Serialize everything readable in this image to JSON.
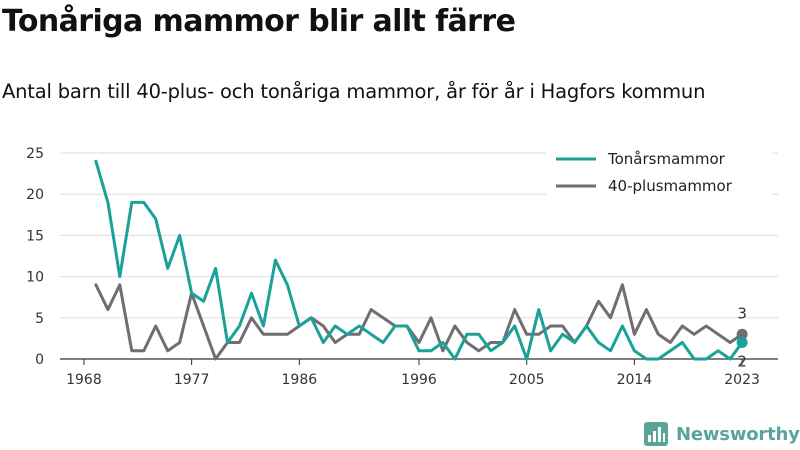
{
  "title": "Tonåriga mammor blir allt färre",
  "subtitle": "Antal barn till 40-plus- och tonåriga mammor, år för år i Hagfors kommun",
  "brand": {
    "name": "Newsworthy",
    "icon": "newsworthy-logo-icon",
    "color": "#5aa59a"
  },
  "chart_data": {
    "type": "line",
    "x_ticks": [
      "1968",
      "1977",
      "1986",
      "1996",
      "2005",
      "2014",
      "2023"
    ],
    "y_ticks": [
      "0",
      "5",
      "10",
      "15",
      "20",
      "25"
    ],
    "ylim": [
      0,
      25
    ],
    "xlim": [
      1968,
      2023
    ],
    "grid": true,
    "legend_position": "top-right",
    "x": [
      1969,
      1970,
      1971,
      1972,
      1973,
      1974,
      1975,
      1976,
      1977,
      1978,
      1979,
      1980,
      1981,
      1982,
      1983,
      1984,
      1985,
      1986,
      1987,
      1988,
      1989,
      1990,
      1991,
      1992,
      1993,
      1994,
      1995,
      1996,
      1997,
      1998,
      1999,
      2000,
      2001,
      2002,
      2003,
      2004,
      2005,
      2006,
      2007,
      2008,
      2009,
      2010,
      2011,
      2012,
      2013,
      2014,
      2015,
      2016,
      2017,
      2018,
      2019,
      2020,
      2021,
      2022,
      2023
    ],
    "series": [
      {
        "name": "Tonårsmammor",
        "color": "#1aa198",
        "values": [
          24,
          19,
          10,
          19,
          19,
          17,
          11,
          15,
          8,
          7,
          11,
          2,
          4,
          8,
          4,
          12,
          9,
          4,
          5,
          2,
          4,
          3,
          4,
          3,
          2,
          4,
          4,
          1,
          1,
          2,
          0,
          3,
          3,
          1,
          2,
          4,
          0,
          6,
          1,
          3,
          2,
          4,
          2,
          1,
          4,
          1,
          0,
          0,
          1,
          2,
          0,
          0,
          1,
          0,
          2
        ],
        "end_label": "2"
      },
      {
        "name": "40-plusmammor",
        "color": "#6e6e73",
        "values": [
          9,
          6,
          9,
          1,
          1,
          4,
          1,
          2,
          8,
          4,
          0,
          2,
          2,
          5,
          3,
          3,
          3,
          4,
          5,
          4,
          2,
          3,
          3,
          6,
          5,
          4,
          4,
          2,
          5,
          1,
          4,
          2,
          1,
          2,
          2,
          6,
          3,
          3,
          4,
          4,
          2,
          4,
          7,
          5,
          9,
          3,
          6,
          3,
          2,
          4,
          3,
          4,
          3,
          2,
          3
        ],
        "end_label": "3"
      }
    ]
  }
}
